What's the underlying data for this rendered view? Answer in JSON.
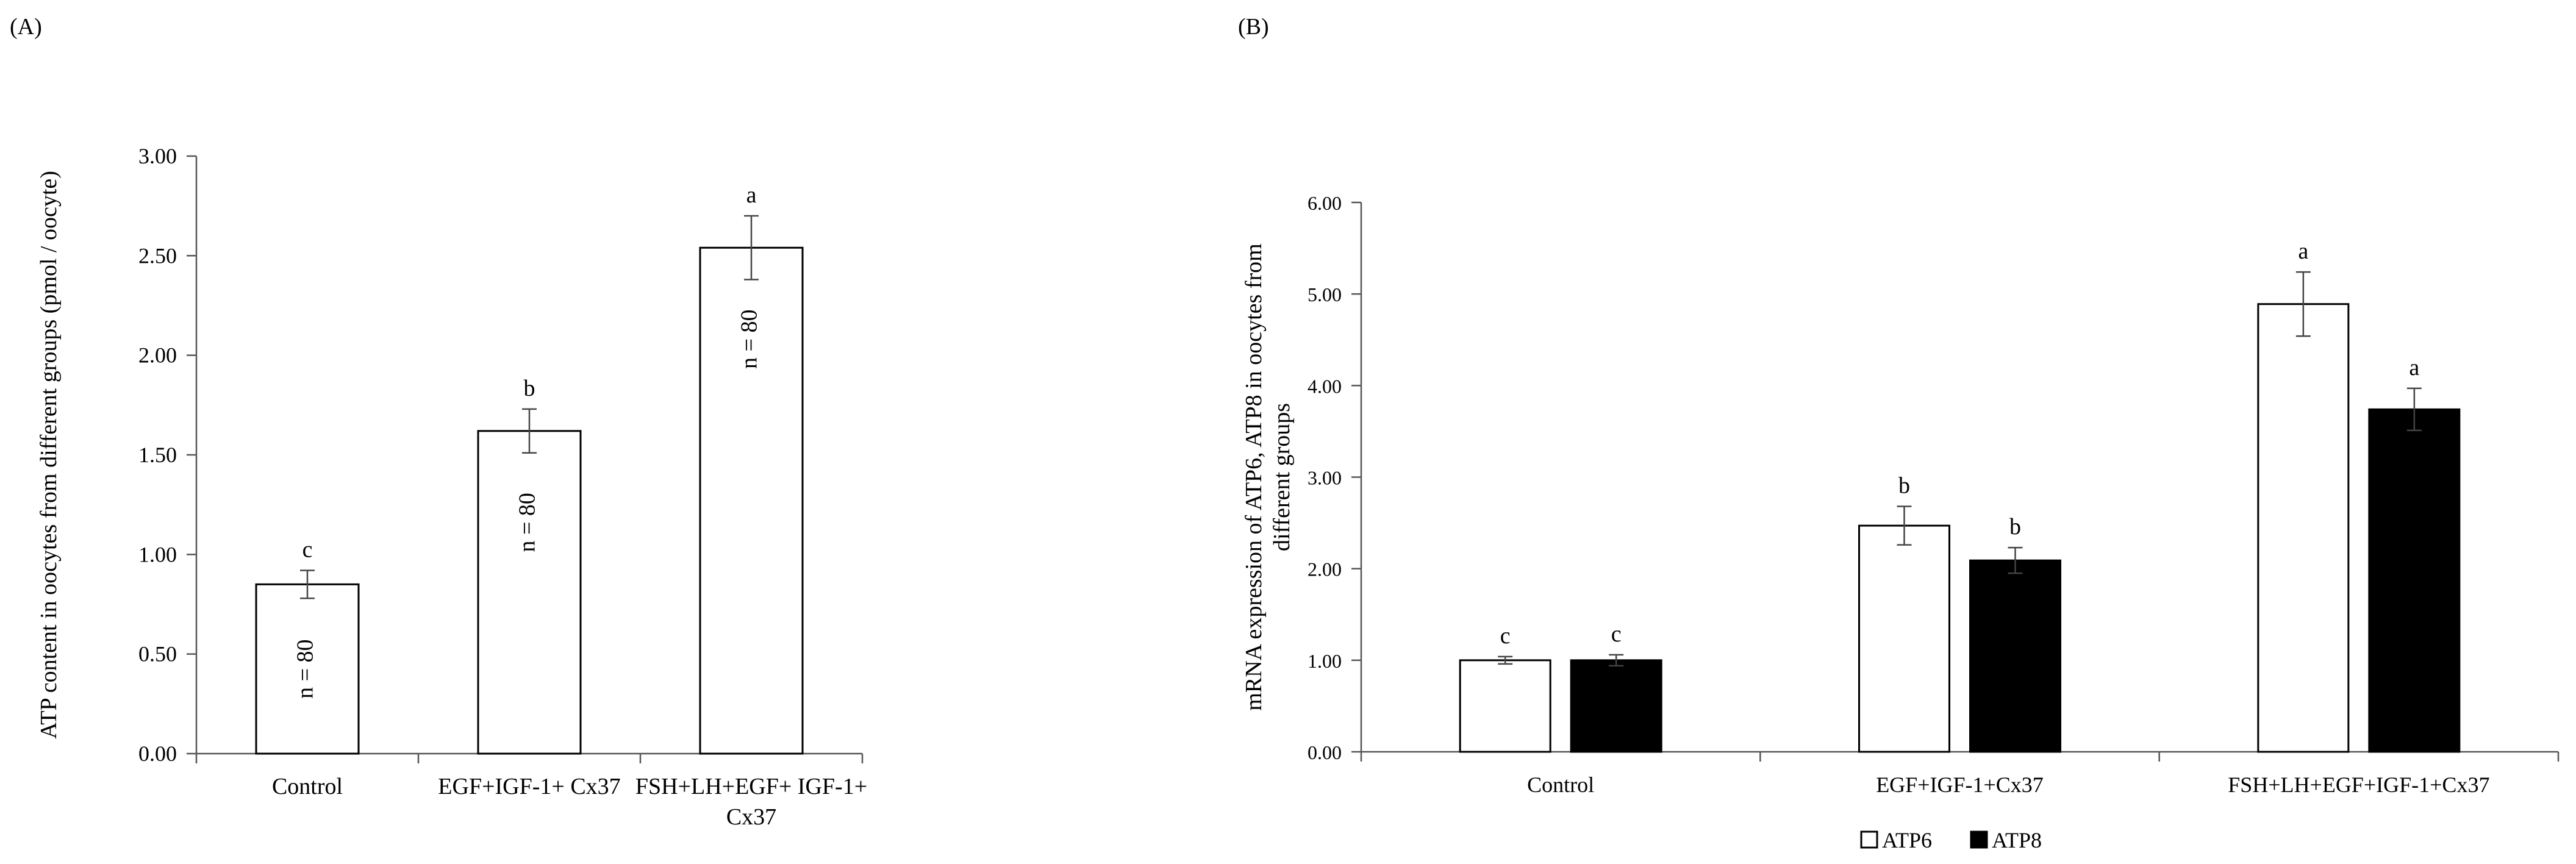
{
  "chart_data": [
    {
      "panel_label": "(A)",
      "type": "bar",
      "ylabel": "ATP content in oocytes from different groups (pmol / oocyte)",
      "xlabel": "",
      "ylim": [
        0,
        3.0
      ],
      "ytick_step": 0.5,
      "ytick_labels": [
        "0.00",
        "0.50",
        "1.00",
        "1.50",
        "2.00",
        "2.50",
        "3.00"
      ],
      "grid": false,
      "categories": [
        [
          "Control"
        ],
        [
          "EGF+IGF-1+ Cx37"
        ],
        [
          "FSH+LH+EGF+ IGF-1+",
          "Cx37"
        ]
      ],
      "series": [
        {
          "fill": "#ffffff",
          "values": [
            0.85,
            1.62,
            2.54
          ],
          "errors": [
            0.07,
            0.11,
            0.16
          ],
          "significance": [
            "c",
            "b",
            "a"
          ],
          "bar_text": [
            "n = 80",
            "n = 80",
            "n = 80"
          ]
        }
      ]
    },
    {
      "panel_label": "(B)",
      "type": "bar",
      "ylabel": [
        "mRNA expression of ATP6, ATP8 in oocytes from",
        "different groups"
      ],
      "xlabel": "",
      "ylim": [
        0,
        6.0
      ],
      "ytick_step": 1.0,
      "ytick_labels": [
        "0.00",
        "1.00",
        "2.00",
        "3.00",
        "4.00",
        "5.00",
        "6.00"
      ],
      "grid": false,
      "legend_position": "bottom",
      "categories": [
        [
          "Control"
        ],
        [
          "EGF+IGF-1+Cx37"
        ],
        [
          "FSH+LH+EGF+IGF-1+Cx37"
        ]
      ],
      "series": [
        {
          "name": "ATP6",
          "fill": "#ffffff",
          "values": [
            1.0,
            2.47,
            4.89
          ],
          "errors": [
            0.04,
            0.21,
            0.35
          ],
          "significance": [
            "c",
            "b",
            "a"
          ]
        },
        {
          "name": "ATP8",
          "fill": "#000000",
          "values": [
            1.0,
            2.09,
            3.74
          ],
          "errors": [
            0.06,
            0.14,
            0.23
          ],
          "significance": [
            "c",
            "b",
            "a"
          ]
        }
      ]
    }
  ]
}
